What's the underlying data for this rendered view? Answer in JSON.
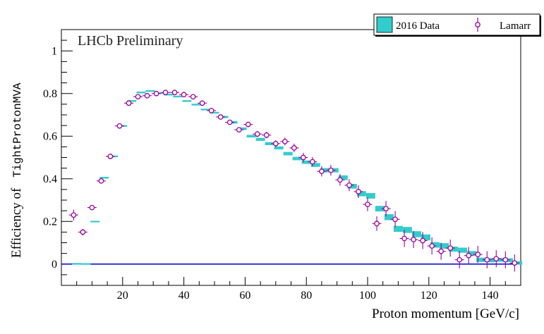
{
  "chart_data": {
    "type": "scatter",
    "title": "LHCb Preliminary",
    "xlabel": "Proton momentum [GeV/c]",
    "ylabel_prefix": "Efficiency of",
    "ylabel_variable": "TightProtonMVA",
    "xlim": [
      0,
      150
    ],
    "ylim": [
      -0.1,
      1.1
    ],
    "xticks": [
      20,
      40,
      60,
      80,
      100,
      120,
      140
    ],
    "xtick_labels": [
      "20",
      "40",
      "60",
      "80",
      "100",
      "120",
      "140"
    ],
    "yticks": [
      0,
      0.2,
      0.4,
      0.6,
      0.8,
      1
    ],
    "ytick_labels": [
      "0",
      "0.2",
      "0.4",
      "0.6",
      "0.8",
      "1"
    ],
    "grid": false,
    "legend_position": "top-right",
    "reference_line": {
      "y": 0,
      "color": "#0000cc"
    },
    "series": [
      {
        "name": "2016 Data",
        "style": "error-box",
        "color": "#33cccc",
        "x": [
          5,
          8,
          11,
          14,
          17,
          20,
          23,
          26,
          29,
          32,
          35,
          38,
          41,
          44,
          47,
          50,
          53,
          56,
          59,
          62,
          65,
          68,
          71,
          74,
          77,
          80,
          83,
          86,
          89,
          92,
          95,
          98,
          101,
          104,
          107,
          110,
          113,
          116,
          119,
          122,
          125,
          128,
          131,
          134,
          137,
          140,
          143,
          146,
          149
        ],
        "y": [
          0.002,
          0.001,
          0.2,
          0.405,
          0.505,
          0.648,
          0.765,
          0.805,
          0.812,
          0.802,
          0.795,
          0.786,
          0.765,
          0.748,
          0.725,
          0.71,
          0.69,
          0.665,
          0.635,
          0.6,
          0.585,
          0.565,
          0.545,
          0.518,
          0.495,
          0.478,
          0.465,
          0.44,
          0.44,
          0.405,
          0.365,
          0.33,
          0.32,
          0.26,
          0.22,
          0.165,
          0.16,
          0.14,
          0.125,
          0.09,
          0.085,
          0.07,
          0.065,
          0.05,
          0.02,
          0.018,
          0.02,
          0.018,
          0.005
        ],
        "yerr": [
          0.002,
          0.002,
          0.003,
          0.004,
          0.004,
          0.004,
          0.004,
          0.004,
          0.004,
          0.004,
          0.004,
          0.004,
          0.004,
          0.004,
          0.004,
          0.004,
          0.005,
          0.006,
          0.006,
          0.006,
          0.007,
          0.007,
          0.007,
          0.008,
          0.008,
          0.008,
          0.009,
          0.01,
          0.01,
          0.011,
          0.011,
          0.012,
          0.013,
          0.013,
          0.014,
          0.014,
          0.014,
          0.014,
          0.014,
          0.013,
          0.013,
          0.012,
          0.012,
          0.011,
          0.01,
          0.01,
          0.009,
          0.009,
          0.008
        ]
      },
      {
        "name": "Lamarr",
        "style": "marker-errorbar",
        "color": "#990099",
        "x": [
          4,
          7,
          10,
          13,
          16,
          19,
          22,
          25,
          28,
          31,
          34,
          37,
          40,
          43,
          46,
          49,
          52,
          55,
          58,
          61,
          64,
          67,
          70,
          73,
          76,
          79,
          82,
          85,
          88,
          91,
          94,
          97,
          100,
          103,
          106,
          109,
          112,
          115,
          118,
          121,
          124,
          127,
          130,
          133,
          136,
          139,
          142,
          145,
          148
        ],
        "y": [
          0.23,
          0.15,
          0.265,
          0.39,
          0.505,
          0.648,
          0.755,
          0.785,
          0.79,
          0.8,
          0.805,
          0.805,
          0.795,
          0.785,
          0.755,
          0.72,
          0.69,
          0.665,
          0.63,
          0.655,
          0.61,
          0.605,
          0.565,
          0.575,
          0.545,
          0.5,
          0.48,
          0.435,
          0.44,
          0.395,
          0.37,
          0.34,
          0.28,
          0.19,
          0.26,
          0.21,
          0.12,
          0.115,
          0.11,
          0.085,
          0.06,
          0.075,
          0.02,
          0.04,
          0.045,
          0.02,
          0.025,
          0.02,
          0.005
        ],
        "yerr": [
          0.025,
          0.015,
          0.01,
          0.01,
          0.008,
          0.007,
          0.006,
          0.006,
          0.006,
          0.006,
          0.006,
          0.006,
          0.007,
          0.007,
          0.007,
          0.008,
          0.01,
          0.01,
          0.012,
          0.012,
          0.014,
          0.015,
          0.016,
          0.018,
          0.02,
          0.022,
          0.022,
          0.024,
          0.025,
          0.027,
          0.028,
          0.03,
          0.032,
          0.034,
          0.036,
          0.038,
          0.04,
          0.04,
          0.04,
          0.04,
          0.04,
          0.04,
          0.04,
          0.04,
          0.04,
          0.04,
          0.04,
          0.04,
          0.04
        ],
        "xerr": 1.5
      }
    ]
  }
}
